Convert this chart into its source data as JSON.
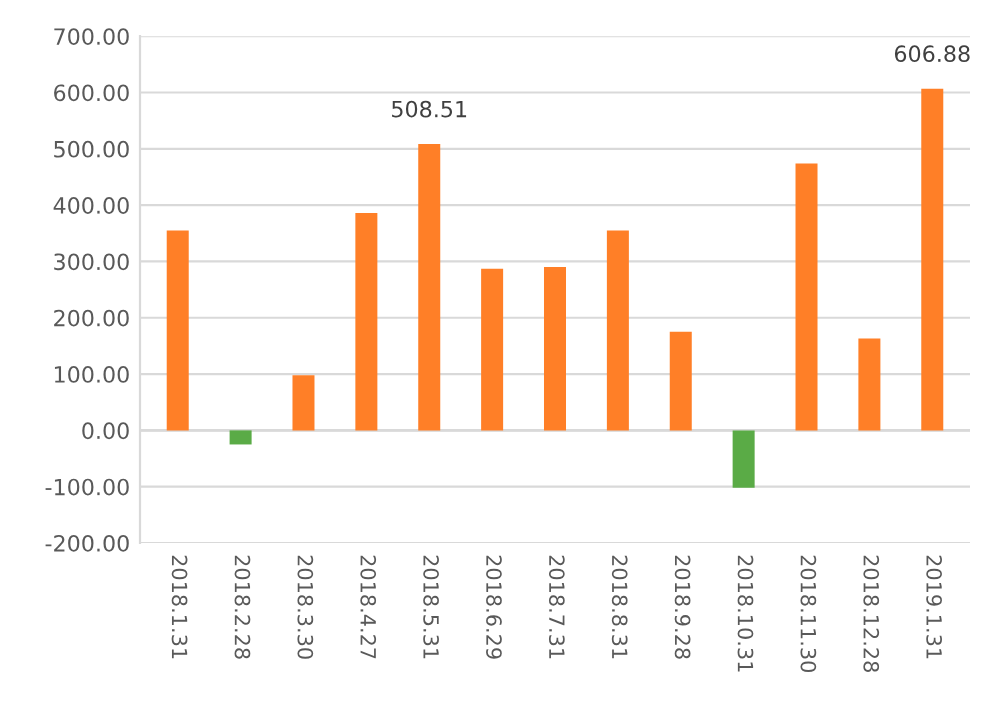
{
  "chart_data": {
    "type": "bar",
    "categories": [
      "2018.1.31",
      "2018.2.28",
      "2018.3.30",
      "2018.4.27",
      "2018.5.31",
      "2018.6.29",
      "2018.7.31",
      "2018.8.31",
      "2018.9.28",
      "2018.10.31",
      "2018.11.30",
      "2018.12.28",
      "2019.1.31"
    ],
    "values": [
      355,
      -25,
      98,
      386,
      508.51,
      287,
      290,
      355,
      175,
      -102,
      474,
      163,
      606.88
    ],
    "colors": [
      "#ff7f27",
      "#5aab46",
      "#ff7f27",
      "#ff7f27",
      "#ff7f27",
      "#ff7f27",
      "#ff7f27",
      "#ff7f27",
      "#ff7f27",
      "#5aab46",
      "#ff7f27",
      "#ff7f27",
      "#ff7f27"
    ],
    "value_labels": [
      null,
      null,
      null,
      null,
      "508.51",
      null,
      null,
      null,
      null,
      null,
      null,
      null,
      "606.88"
    ],
    "ylim": [
      -200,
      700
    ],
    "yticks": [
      {
        "value": -200,
        "label": "-200.00"
      },
      {
        "value": -100,
        "label": "-100.00"
      },
      {
        "value": 0,
        "label": "0.00"
      },
      {
        "value": 100,
        "label": "100.00"
      },
      {
        "value": 200,
        "label": "200.00"
      },
      {
        "value": 300,
        "label": "300.00"
      },
      {
        "value": 400,
        "label": "400.00"
      },
      {
        "value": 500,
        "label": "500.00"
      },
      {
        "value": 600,
        "label": "600.00"
      },
      {
        "value": 700,
        "label": "700.00"
      }
    ],
    "grid": "y"
  }
}
